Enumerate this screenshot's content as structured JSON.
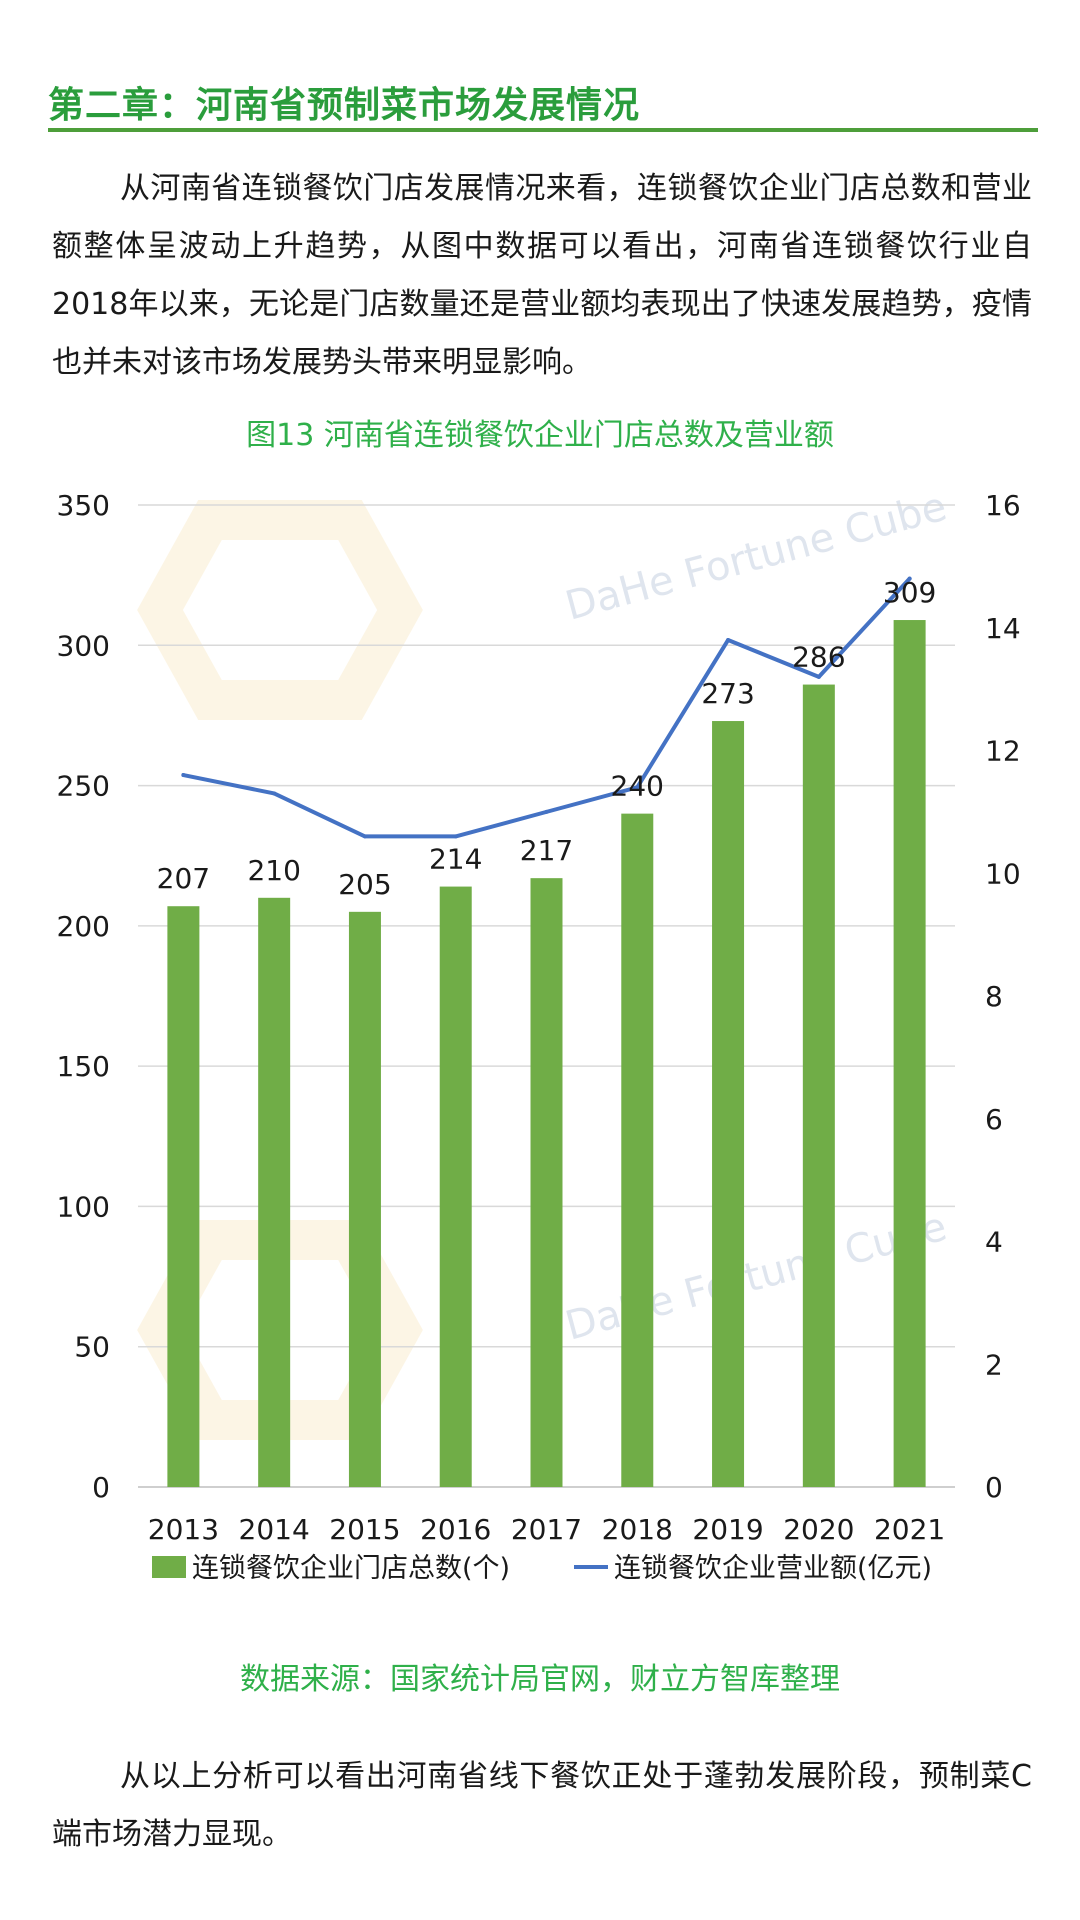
{
  "heading": "第二章：河南省预制菜市场发展情况",
  "paragraph_1": "从河南省连锁餐饮门店发展情况来看，连锁餐饮企业门店总数和营业额整体呈波动上升趋势，从图中数据可以看出，河南省连锁餐饮行业自2018年以来，无论是门店数量还是营业额均表现出了快速发展趋势，疫情也并未对该市场发展势头带来明显影响。",
  "watermark_text": "DaHe Fortune Cube",
  "source": "数据来源：国家统计局官网，财立方智库整理",
  "paragraph_2": "从以上分析可以看出河南省线下餐饮正处于蓬勃发展阶段，预制菜C端市场潜力显现。",
  "colors": {
    "heading": "#2a9d3c",
    "bar": "#70ad47",
    "line": "#4472c4",
    "title": "#2fb04a"
  },
  "chart_data": {
    "type": "bar",
    "title": "图13 河南省连锁餐饮企业门店总数及营业额",
    "categories": [
      "2013",
      "2014",
      "2015",
      "2016",
      "2017",
      "2018",
      "2019",
      "2020",
      "2021"
    ],
    "ylim": [
      0,
      350
    ],
    "yticks": [
      0,
      50,
      100,
      150,
      200,
      250,
      300,
      350
    ],
    "y2lim": [
      0,
      16
    ],
    "y2ticks": [
      0,
      2,
      4,
      6,
      8,
      10,
      12,
      14,
      16
    ],
    "grid": true,
    "legend": "bottom",
    "series": [
      {
        "name": "连锁餐饮企业门店总数(个)",
        "type": "bar",
        "axis": "left",
        "values": [
          207,
          210,
          205,
          214,
          217,
          240,
          273,
          286,
          309
        ]
      },
      {
        "name": "连锁餐饮企业营业额(亿元)",
        "type": "line",
        "axis": "right",
        "values": [
          11.6,
          11.3,
          10.6,
          10.6,
          11.0,
          11.4,
          13.8,
          13.2,
          14.8
        ]
      }
    ]
  }
}
